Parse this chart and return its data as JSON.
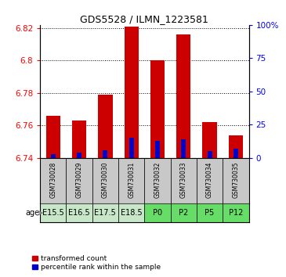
{
  "title": "GDS5528 / ILMN_1223581",
  "samples": [
    "GSM730028",
    "GSM730029",
    "GSM730030",
    "GSM730031",
    "GSM730032",
    "GSM730033",
    "GSM730034",
    "GSM730035"
  ],
  "age_labels": [
    "E15.5",
    "E16.5",
    "E17.5",
    "E18.5",
    "P0",
    "P2",
    "P5",
    "P12"
  ],
  "age_bg_colors_embryo": "#c8e6c8",
  "age_bg_colors_post": "#66dd66",
  "age_embryo_count": 4,
  "sample_bg_color": "#c8c8c8",
  "transformed_counts": [
    6.766,
    6.763,
    6.779,
    6.821,
    6.8,
    6.816,
    6.762,
    6.754
  ],
  "percentile_ranks": [
    3,
    4,
    6,
    15,
    13,
    14,
    5,
    7
  ],
  "ylim_left": [
    6.74,
    6.822
  ],
  "ylim_right": [
    0,
    100
  ],
  "yticks_left": [
    6.74,
    6.76,
    6.78,
    6.8,
    6.82
  ],
  "yticks_right": [
    0,
    25,
    50,
    75,
    100
  ],
  "yticklabels_right": [
    "0",
    "25",
    "50",
    "75",
    "100%"
  ],
  "red_color": "#cc0000",
  "blue_color": "#0000cc",
  "baseline": 6.74
}
